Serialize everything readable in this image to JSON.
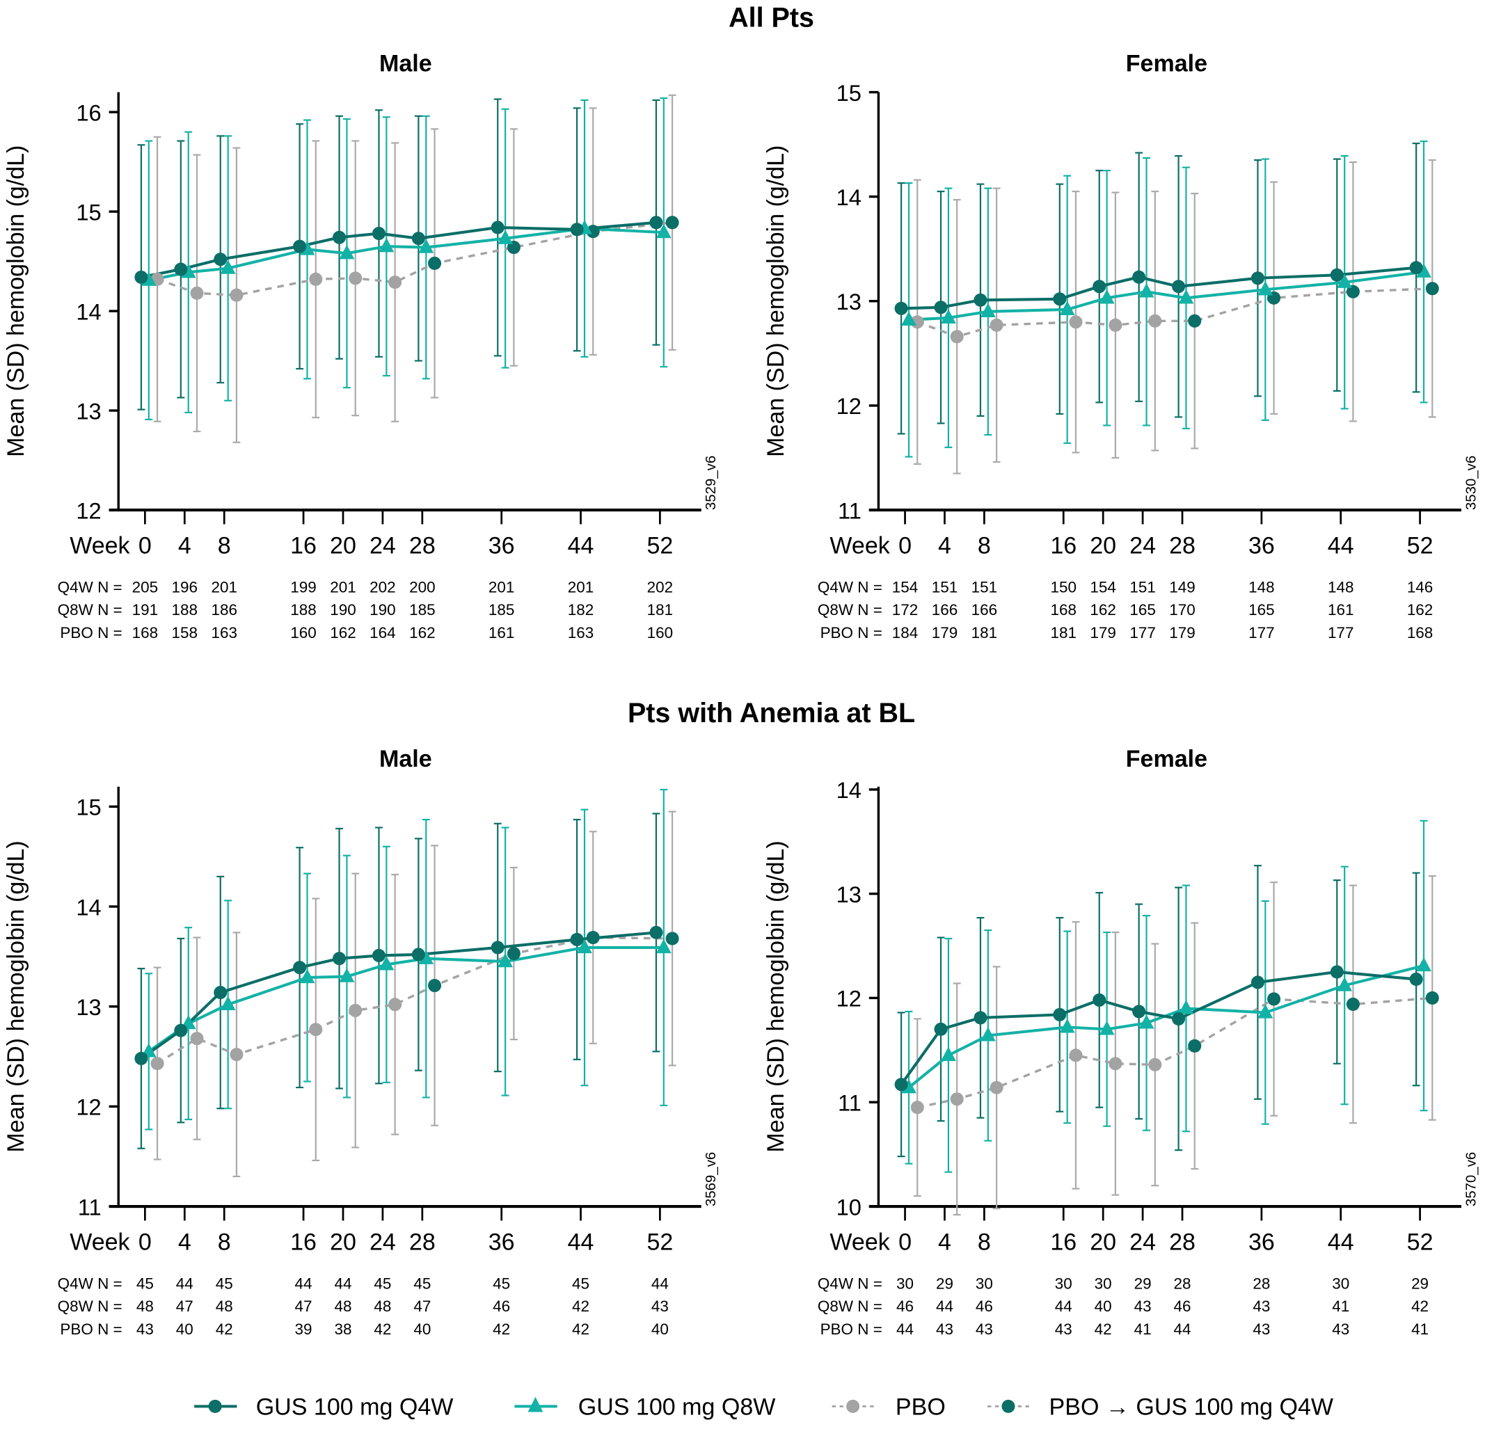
{
  "figure": {
    "legend": [
      {
        "key": "q4w",
        "label": "GUS 100 mg Q4W",
        "color": "#0b6e67",
        "marker": "circle",
        "line": "solid"
      },
      {
        "key": "q8w",
        "label": "GUS 100 mg Q8W",
        "color": "#13b2a6",
        "marker": "triangle",
        "line": "solid"
      },
      {
        "key": "pbo",
        "label": "PBO",
        "color": "#a3a3a3",
        "marker": "circle",
        "line": "dashed"
      },
      {
        "key": "pbo_gus",
        "label": "PBO → GUS 100 mg Q4W",
        "color": "#0b6e67",
        "marker": "circle",
        "line": "dashed"
      }
    ],
    "n_row_labels": {
      "q4w": "Q4W N =",
      "q8w": "Q8W N =",
      "pbo": "PBO N ="
    },
    "x_axis_prefix": "Week"
  },
  "chart_data": [
    {
      "type": "line",
      "section": "All Pts",
      "title": "Male",
      "code": "3529_v6",
      "xlabel": "Week",
      "ylabel": "Mean (SD) hemoglobin (g/dL)",
      "ylim": [
        12,
        16.2
      ],
      "yticks": [
        12,
        13,
        14,
        15,
        16
      ],
      "x": [
        0,
        4,
        8,
        16,
        20,
        24,
        28,
        36,
        44,
        52
      ],
      "series": [
        {
          "name": "GUS 100 mg Q4W",
          "key": "q4w",
          "values": [
            14.34,
            14.42,
            14.52,
            14.65,
            14.74,
            14.78,
            14.73,
            14.84,
            14.82,
            14.89
          ],
          "sd": [
            1.33,
            1.29,
            1.24,
            1.23,
            1.22,
            1.24,
            1.23,
            1.29,
            1.22,
            1.23
          ],
          "n": [
            205,
            196,
            201,
            199,
            201,
            202,
            200,
            201,
            201,
            202
          ]
        },
        {
          "name": "GUS 100 mg Q8W",
          "key": "q8w",
          "values": [
            14.31,
            14.39,
            14.43,
            14.62,
            14.58,
            14.65,
            14.64,
            14.73,
            14.83,
            14.79
          ],
          "sd": [
            1.4,
            1.41,
            1.33,
            1.3,
            1.35,
            1.3,
            1.32,
            1.3,
            1.29,
            1.35
          ],
          "n": [
            191,
            188,
            186,
            188,
            190,
            190,
            185,
            185,
            182,
            181
          ]
        },
        {
          "name": "PBO",
          "key": "pbo",
          "x": [
            0,
            4,
            8,
            16,
            20,
            24
          ],
          "values": [
            14.32,
            14.18,
            14.16,
            14.32,
            14.33,
            14.29
          ],
          "sd": [
            1.43,
            1.39,
            1.48,
            1.39,
            1.38,
            1.4
          ],
          "n": [
            168,
            158,
            163,
            160,
            162,
            164,
            162,
            161,
            163,
            160
          ]
        },
        {
          "name": "PBO → GUS 100 mg Q4W",
          "key": "pbo_gus",
          "x": [
            28,
            36,
            44,
            52
          ],
          "values": [
            14.48,
            14.64,
            14.8,
            14.89
          ],
          "sd": [
            1.35,
            1.19,
            1.24,
            1.28
          ]
        }
      ]
    },
    {
      "type": "line",
      "section": "All Pts",
      "title": "Female",
      "code": "3530_v6",
      "xlabel": "Week",
      "ylabel": "Mean (SD) hemoglobin (g/dL)",
      "ylim": [
        11,
        15
      ],
      "yticks": [
        11,
        12,
        13,
        14,
        15
      ],
      "x": [
        0,
        4,
        8,
        16,
        20,
        24,
        28,
        36,
        44,
        52
      ],
      "series": [
        {
          "name": "GUS 100 mg Q4W",
          "key": "q4w",
          "values": [
            12.93,
            12.94,
            13.01,
            13.02,
            13.14,
            13.23,
            13.14,
            13.22,
            13.25,
            13.32
          ],
          "sd": [
            1.2,
            1.11,
            1.11,
            1.1,
            1.11,
            1.19,
            1.25,
            1.13,
            1.11,
            1.19
          ],
          "n": [
            154,
            151,
            151,
            150,
            154,
            151,
            149,
            148,
            148,
            146
          ]
        },
        {
          "name": "GUS 100 mg Q8W",
          "key": "q8w",
          "values": [
            12.82,
            12.84,
            12.9,
            12.92,
            13.03,
            13.09,
            13.03,
            13.11,
            13.18,
            13.28
          ],
          "sd": [
            1.31,
            1.24,
            1.18,
            1.28,
            1.22,
            1.28,
            1.25,
            1.25,
            1.21,
            1.25
          ],
          "n": [
            172,
            166,
            166,
            168,
            162,
            165,
            170,
            165,
            161,
            162
          ]
        },
        {
          "name": "PBO",
          "key": "pbo",
          "x": [
            0,
            4,
            8,
            16,
            20,
            24
          ],
          "values": [
            12.8,
            12.66,
            12.77,
            12.8,
            12.77,
            12.81
          ],
          "sd": [
            1.36,
            1.31,
            1.31,
            1.25,
            1.27,
            1.24
          ],
          "n": [
            184,
            179,
            181,
            181,
            179,
            177,
            179,
            177,
            177,
            168
          ]
        },
        {
          "name": "PBO → GUS 100 mg Q4W",
          "key": "pbo_gus",
          "x": [
            28,
            36,
            44,
            52
          ],
          "values": [
            12.81,
            13.03,
            13.09,
            13.12
          ],
          "sd": [
            1.22,
            1.11,
            1.24,
            1.23
          ]
        }
      ]
    },
    {
      "type": "line",
      "section": "Pts with Anemia at BL",
      "title": "Male",
      "code": "3569_v6",
      "xlabel": "Week",
      "ylabel": "Mean (SD) hemoglobin (g/dL)",
      "ylim": [
        11,
        15.2
      ],
      "yticks": [
        11,
        12,
        13,
        14,
        15
      ],
      "x": [
        0,
        4,
        8,
        16,
        20,
        24,
        28,
        36,
        44,
        52
      ],
      "series": [
        {
          "name": "GUS 100 mg Q4W",
          "key": "q4w",
          "values": [
            12.48,
            12.76,
            13.14,
            13.39,
            13.48,
            13.51,
            13.52,
            13.59,
            13.67,
            13.74
          ],
          "sd": [
            0.9,
            0.92,
            1.16,
            1.2,
            1.3,
            1.28,
            1.16,
            1.24,
            1.2,
            1.19
          ],
          "n": [
            45,
            44,
            45,
            44,
            44,
            45,
            45,
            45,
            45,
            44
          ]
        },
        {
          "name": "GUS 100 mg Q8W",
          "key": "q8w",
          "values": [
            12.55,
            12.83,
            13.02,
            13.29,
            13.3,
            13.42,
            13.48,
            13.45,
            13.59,
            13.59
          ],
          "sd": [
            0.78,
            0.96,
            1.04,
            1.04,
            1.21,
            1.18,
            1.39,
            1.34,
            1.38,
            1.58
          ],
          "n": [
            48,
            47,
            48,
            47,
            48,
            48,
            47,
            46,
            42,
            43
          ]
        },
        {
          "name": "PBO",
          "key": "pbo",
          "x": [
            0,
            4,
            8,
            16,
            20,
            24
          ],
          "values": [
            12.43,
            12.68,
            12.52,
            12.77,
            12.96,
            13.02
          ],
          "sd": [
            0.96,
            1.01,
            1.22,
            1.31,
            1.37,
            1.3
          ],
          "n": [
            43,
            40,
            42,
            39,
            38,
            42,
            40,
            42,
            42,
            40
          ]
        },
        {
          "name": "PBO → GUS 100 mg Q4W",
          "key": "pbo_gus",
          "x": [
            28,
            36,
            44,
            52
          ],
          "values": [
            13.21,
            13.53,
            13.69,
            13.68
          ],
          "sd": [
            1.4,
            0.86,
            1.06,
            1.27
          ]
        }
      ]
    },
    {
      "type": "line",
      "section": "Pts with Anemia at BL",
      "title": "Female",
      "code": "3570_v6",
      "xlabel": "Week",
      "ylabel": "Mean (SD) hemoglobin (g/dL)",
      "ylim": [
        10,
        14
      ],
      "yticks": [
        10,
        11,
        12,
        13,
        14
      ],
      "x": [
        0,
        4,
        8,
        16,
        20,
        24,
        28,
        36,
        44,
        52
      ],
      "series": [
        {
          "name": "GUS 100 mg Q4W",
          "key": "q4w",
          "values": [
            11.17,
            11.7,
            11.81,
            11.84,
            11.98,
            11.87,
            11.8,
            12.15,
            12.25,
            12.18
          ],
          "sd": [
            0.69,
            0.88,
            0.96,
            0.93,
            1.03,
            1.03,
            1.26,
            1.12,
            0.88,
            1.02
          ],
          "n": [
            30,
            29,
            30,
            30,
            30,
            29,
            28,
            28,
            30,
            29
          ]
        },
        {
          "name": "GUS 100 mg Q8W",
          "key": "q8w",
          "values": [
            11.14,
            11.45,
            11.64,
            11.72,
            11.7,
            11.76,
            11.9,
            11.86,
            12.12,
            12.31
          ],
          "sd": [
            0.73,
            1.12,
            1.01,
            0.92,
            0.93,
            1.03,
            1.18,
            1.07,
            1.14,
            1.39
          ],
          "n": [
            46,
            44,
            46,
            44,
            40,
            43,
            46,
            43,
            41,
            42
          ]
        },
        {
          "name": "PBO",
          "key": "pbo",
          "x": [
            0,
            4,
            8,
            16,
            20,
            24
          ],
          "values": [
            10.95,
            11.03,
            11.14,
            11.45,
            11.37,
            11.36
          ],
          "sd": [
            0.85,
            1.11,
            1.16,
            1.28,
            1.26,
            1.16
          ],
          "n": [
            44,
            43,
            43,
            43,
            42,
            41,
            44,
            43,
            43,
            41
          ]
        },
        {
          "name": "PBO → GUS 100 mg Q4W",
          "key": "pbo_gus",
          "x": [
            28,
            36,
            44,
            52
          ],
          "values": [
            11.54,
            11.99,
            11.94,
            12.0
          ],
          "sd": [
            1.18,
            1.12,
            1.14,
            1.17
          ]
        }
      ]
    }
  ],
  "sections": [
    "All Pts",
    "Pts with Anemia at BL"
  ]
}
